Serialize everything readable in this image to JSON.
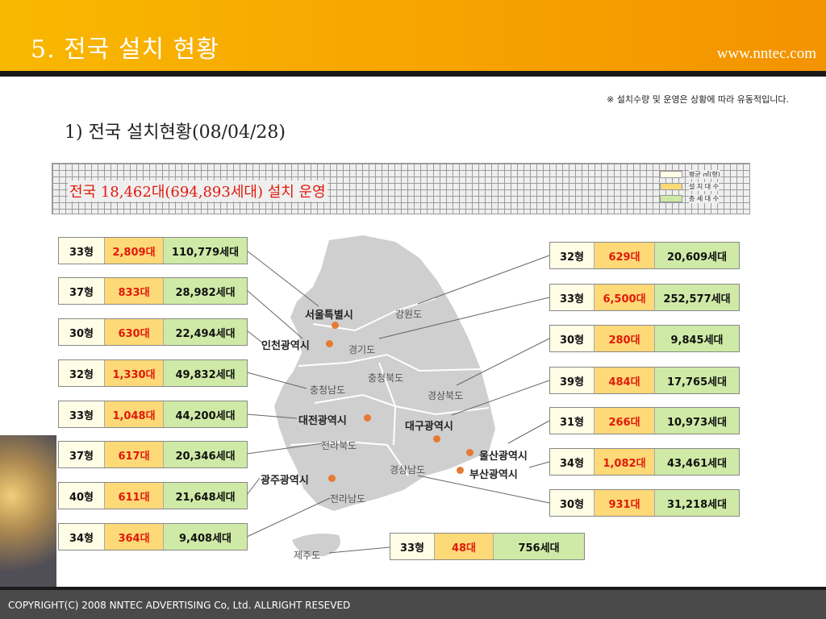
{
  "header": {
    "title": "5.  전국 설치 현황",
    "url": "www.nntec.com"
  },
  "note": "※ 설치수량 및 운영은 상황에 따라 유동적입니다.",
  "subtitle": "1) 전국 설치현황(08/04/28)",
  "banner": {
    "text": "전국 18,462대(694,893세대) 설치 운영"
  },
  "legend": [
    {
      "label": "평균 ㎡(형)",
      "color": "#fffde6"
    },
    {
      "label": "설 치 대 수",
      "color": "#fdd977"
    },
    {
      "label": "총 세 대 수",
      "color": "#cfeaa6"
    }
  ],
  "map_labels": {
    "regions": [
      "강원도",
      "경기도",
      "충청북도",
      "충청남도",
      "경상북도",
      "전라북도",
      "경상남도",
      "전라남도",
      "제주도"
    ],
    "cities": [
      "서울특별시",
      "인천광역시",
      "대전광역시",
      "대구광역시",
      "울산광역시",
      "부산광역시",
      "광주광역시"
    ]
  },
  "left_boxes": [
    {
      "size": "33형",
      "units": "2,809대",
      "households": "110,779세대"
    },
    {
      "size": "37형",
      "units": "833대",
      "households": "28,982세대"
    },
    {
      "size": "30형",
      "units": "630대",
      "households": "22,494세대"
    },
    {
      "size": "32형",
      "units": "1,330대",
      "households": "49,832세대"
    },
    {
      "size": "33형",
      "units": "1,048대",
      "households": "44,200세대"
    },
    {
      "size": "37형",
      "units": "617대",
      "households": "20,346세대"
    },
    {
      "size": "40형",
      "units": "611대",
      "households": "21,648세대"
    },
    {
      "size": "34형",
      "units": "364대",
      "households": "9,408세대"
    }
  ],
  "right_boxes": [
    {
      "size": "32형",
      "units": "629대",
      "households": "20,609세대"
    },
    {
      "size": "33형",
      "units": "6,500대",
      "households": "252,577세대"
    },
    {
      "size": "30형",
      "units": "280대",
      "households": "9,845세대"
    },
    {
      "size": "39형",
      "units": "484대",
      "households": "17,765세대"
    },
    {
      "size": "31형",
      "units": "266대",
      "households": "10,973세대"
    },
    {
      "size": "34형",
      "units": "1,082대",
      "households": "43,461세대"
    },
    {
      "size": "30형",
      "units": "931대",
      "households": "31,218세대"
    }
  ],
  "jeju_box": {
    "size": "33형",
    "units": "48대",
    "households": "756세대"
  },
  "footer": "COPYRIGHT(C) 2008 NNTEC ADVERTISING Co, Ltd. ALLRIGHT RESEVED"
}
